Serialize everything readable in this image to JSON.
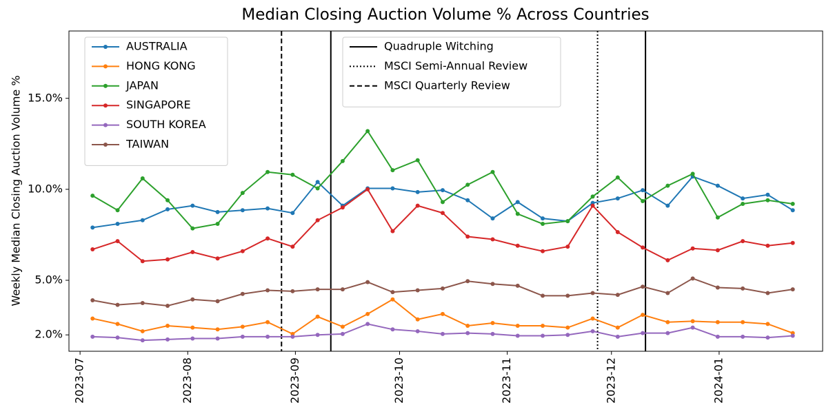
{
  "chart_data": {
    "type": "line",
    "title": "Median Closing Auction Volume % Across Countries",
    "y_label": "Weekly Median Closing Auction Volume %",
    "x": [
      3.6,
      10.8,
      18,
      25.2,
      32.4,
      39.6,
      46.8,
      54,
      61.2,
      68.4,
      75.6,
      82.8,
      90,
      97.2,
      104.4,
      111.6,
      118.8,
      126,
      133.2,
      140.4,
      147.6,
      154.8,
      162,
      169.2,
      176.4,
      183.6,
      190.8,
      198,
      205.2
    ],
    "xlim": [
      -3.2,
      213.8
    ],
    "xticks": [
      {
        "value": 0,
        "label": "2023-07"
      },
      {
        "value": 31,
        "label": "2023-08"
      },
      {
        "value": 62,
        "label": "2023-09"
      },
      {
        "value": 92,
        "label": "2023-10"
      },
      {
        "value": 123,
        "label": "2023-11"
      },
      {
        "value": 153,
        "label": "2023-12"
      },
      {
        "value": 184,
        "label": "2024-01"
      }
    ],
    "ylim": [
      1.1,
      18.7
    ],
    "yticks": [
      {
        "value": 2,
        "label": "2.0%"
      },
      {
        "value": 5,
        "label": "5.0%"
      },
      {
        "value": 10,
        "label": "10.0%"
      },
      {
        "value": 15,
        "label": "15.0%"
      }
    ],
    "grid": false,
    "legend": "upper left",
    "series": [
      {
        "name": "AUSTRALIA",
        "color": "#1f77b4",
        "values": [
          7.9,
          8.1,
          8.3,
          8.9,
          9.1,
          8.75,
          8.85,
          8.95,
          8.7,
          10.4,
          9.1,
          10.05,
          10.05,
          9.85,
          9.95,
          9.4,
          8.4,
          9.3,
          8.4,
          8.25,
          9.25,
          9.5,
          9.95,
          9.1,
          10.7,
          10.2,
          9.5,
          9.7,
          8.85
        ]
      },
      {
        "name": "HONG KONG",
        "color": "#ff7f0e",
        "values": [
          2.9,
          2.6,
          2.2,
          2.5,
          2.4,
          2.3,
          2.45,
          2.7,
          2.05,
          3.0,
          2.45,
          3.15,
          3.95,
          2.85,
          3.15,
          2.5,
          2.65,
          2.5,
          2.5,
          2.4,
          2.9,
          2.4,
          3.1,
          2.7,
          2.75,
          2.7,
          2.7,
          2.6,
          2.1
        ]
      },
      {
        "name": "JAPAN",
        "color": "#2ca02c",
        "values": [
          9.65,
          8.85,
          10.6,
          9.4,
          7.85,
          8.1,
          9.8,
          10.95,
          10.8,
          10.05,
          11.55,
          13.2,
          11.05,
          11.6,
          9.3,
          10.25,
          10.95,
          8.65,
          8.1,
          8.25,
          9.6,
          10.65,
          9.35,
          10.2,
          10.85,
          8.45,
          9.2,
          9.4,
          9.2
        ]
      },
      {
        "name": "SINGAPORE",
        "color": "#d62728",
        "values": [
          6.7,
          7.15,
          6.05,
          6.15,
          6.55,
          6.2,
          6.6,
          7.3,
          6.85,
          8.3,
          9.0,
          10.0,
          7.7,
          9.1,
          8.7,
          7.4,
          7.25,
          6.9,
          6.6,
          6.85,
          9.1,
          7.65,
          6.8,
          6.1,
          6.75,
          6.65,
          7.15,
          6.9,
          7.05
        ]
      },
      {
        "name": "SOUTH KOREA",
        "color": "#9467bd",
        "values": [
          1.9,
          1.85,
          1.7,
          1.75,
          1.8,
          1.8,
          1.9,
          1.9,
          1.9,
          2.0,
          2.05,
          2.6,
          2.3,
          2.2,
          2.05,
          2.1,
          2.05,
          1.95,
          1.95,
          2.0,
          2.2,
          1.9,
          2.1,
          2.1,
          2.4,
          1.9,
          1.9,
          1.85,
          1.95
        ]
      },
      {
        "name": "TAIWAN",
        "color": "#8c564b",
        "values": [
          3.9,
          3.65,
          3.75,
          3.6,
          3.95,
          3.85,
          4.25,
          4.45,
          4.4,
          4.5,
          4.5,
          4.9,
          4.35,
          4.45,
          4.55,
          4.95,
          4.8,
          4.7,
          4.15,
          4.15,
          4.3,
          4.2,
          4.65,
          4.3,
          5.1,
          4.6,
          4.55,
          4.3,
          4.5
        ]
      }
    ],
    "event_lines": [
      {
        "name": "Quadruple Witching",
        "style": "solid",
        "color": "#000000",
        "x": [
          72.2,
          162.8
        ]
      },
      {
        "name": "MSCI Semi-Annual Review",
        "style": "dotted",
        "color": "#000000",
        "x": [
          149
        ]
      },
      {
        "name": "MSCI Quarterly Review",
        "style": "dashed",
        "color": "#000000",
        "x": [
          58
        ]
      }
    ]
  }
}
